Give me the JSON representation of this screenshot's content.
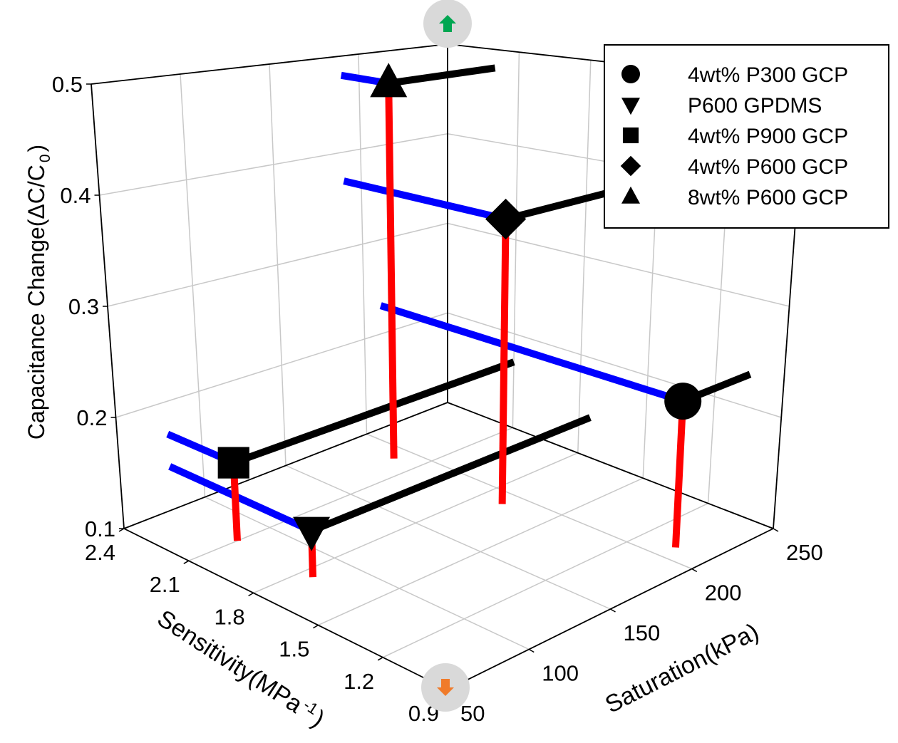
{
  "chart_data": {
    "type": "scatter",
    "projection": "3d",
    "axes": {
      "x": {
        "label": "Sensitivity(MPa",
        "label_sup": "-1",
        "label_end": ")",
        "range": [
          0.9,
          2.4
        ],
        "ticks": [
          "0.9",
          "1.2",
          "1.5",
          "1.8",
          "2.1",
          "2.4"
        ]
      },
      "y": {
        "label": "Saturation(kPa)",
        "range": [
          50,
          250
        ],
        "ticks": [
          "50",
          "100",
          "150",
          "200",
          "250"
        ]
      },
      "z": {
        "label": "Capacitance Change(ΔC/C",
        "label_sub": "0",
        "label_end": ")",
        "range": [
          0.1,
          0.5
        ],
        "ticks": [
          "0.1",
          "0.2",
          "0.3",
          "0.4",
          "0.5"
        ]
      }
    },
    "grid": true,
    "legend_position": "top-right",
    "projection_colors": {
      "to_floor": "#ff0000",
      "to_sensitivity_wall": "#0000ff",
      "to_saturation_wall": "#000000"
    },
    "series": [
      {
        "name": "4wt% P300 GCP",
        "marker": "circle",
        "sensitivity": 1.05,
        "saturation": 210,
        "capacitance_change": 0.23
      },
      {
        "name": "P600 GPDMS",
        "marker": "triangle-down",
        "sensitivity": 1.75,
        "saturation": 80,
        "capacitance_change": 0.14
      },
      {
        "name": "4wt% P900 GCP",
        "marker": "square",
        "sensitivity": 2.1,
        "saturation": 80,
        "capacitance_change": 0.17
      },
      {
        "name": "4wt% P600 GCP",
        "marker": "diamond",
        "sensitivity": 1.7,
        "saturation": 190,
        "capacitance_change": 0.37
      },
      {
        "name": "8wt% P600 GCP",
        "marker": "triangle-up",
        "sensitivity": 2.2,
        "saturation": 190,
        "capacitance_change": 0.48
      }
    ]
  },
  "overlay": {
    "rotate_up_icon": "arrow-up-icon",
    "rotate_up_color": "#00a651",
    "rotate_down_icon": "arrow-down-icon",
    "rotate_down_color": "#f07b2a"
  }
}
